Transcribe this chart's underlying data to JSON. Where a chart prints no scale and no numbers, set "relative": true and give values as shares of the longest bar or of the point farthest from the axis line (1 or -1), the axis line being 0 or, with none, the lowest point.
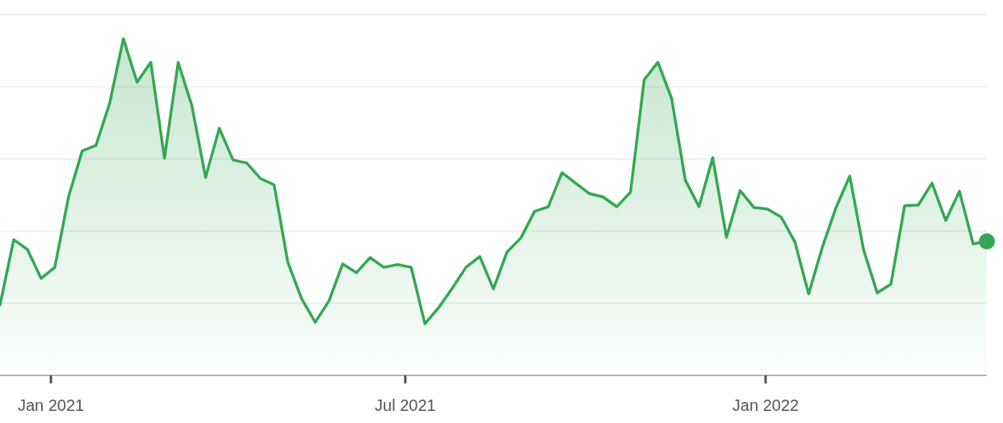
{
  "chart_data": {
    "type": "area",
    "relative": true,
    "grid": "y",
    "xlim": [
      "2020-12-06",
      "2022-04-24"
    ],
    "xticks": [
      {
        "value": "2021-01-01",
        "label": "Jan 2021"
      },
      {
        "value": "2021-07-01",
        "label": "Jul 2021"
      },
      {
        "value": "2022-01-01",
        "label": "Jan 2022"
      }
    ],
    "series": [
      {
        "color": "#34a853",
        "x": [
          "2020-12-06",
          "2020-12-13",
          "2020-12-20",
          "2020-12-27",
          "2021-01-03",
          "2021-01-10",
          "2021-01-17",
          "2021-01-24",
          "2021-01-31",
          "2021-02-07",
          "2021-02-14",
          "2021-02-21",
          "2021-02-28",
          "2021-03-07",
          "2021-03-14",
          "2021-03-21",
          "2021-03-28",
          "2021-04-04",
          "2021-04-11",
          "2021-04-18",
          "2021-04-25",
          "2021-05-02",
          "2021-05-09",
          "2021-05-16",
          "2021-05-23",
          "2021-05-30",
          "2021-06-06",
          "2021-06-13",
          "2021-06-20",
          "2021-06-27",
          "2021-07-04",
          "2021-07-11",
          "2021-07-18",
          "2021-07-25",
          "2021-08-01",
          "2021-08-08",
          "2021-08-15",
          "2021-08-22",
          "2021-08-29",
          "2021-09-05",
          "2021-09-12",
          "2021-09-19",
          "2021-09-26",
          "2021-10-03",
          "2021-10-10",
          "2021-10-17",
          "2021-10-24",
          "2021-10-31",
          "2021-11-07",
          "2021-11-14",
          "2021-11-21",
          "2021-11-28",
          "2021-12-05",
          "2021-12-12",
          "2021-12-19",
          "2021-12-26",
          "2022-01-02",
          "2022-01-09",
          "2022-01-16",
          "2022-01-23",
          "2022-01-30",
          "2022-02-06",
          "2022-02-13",
          "2022-02-20",
          "2022-02-27",
          "2022-03-06",
          "2022-03-13",
          "2022-03-20",
          "2022-03-27",
          "2022-04-03",
          "2022-04-10",
          "2022-04-17",
          "2022-04-24"
        ],
        "values": [
          0.209,
          0.403,
          0.374,
          0.288,
          0.321,
          0.53,
          0.667,
          0.683,
          0.808,
          1,
          0.871,
          0.93,
          0.645,
          0.93,
          0.801,
          0.588,
          0.734,
          0.64,
          0.631,
          0.585,
          0.566,
          0.336,
          0.228,
          0.158,
          0.221,
          0.331,
          0.305,
          0.35,
          0.321,
          0.329,
          0.321,
          0.153,
          0.201,
          0.259,
          0.321,
          0.353,
          0.257,
          0.367,
          0.408,
          0.487,
          0.501,
          0.602,
          0.571,
          0.54,
          0.53,
          0.501,
          0.544,
          0.878,
          0.93,
          0.823,
          0.58,
          0.501,
          0.647,
          0.41,
          0.549,
          0.499,
          0.494,
          0.47,
          0.396,
          0.242,
          0.381,
          0.499,
          0.592,
          0.374,
          0.245,
          0.271,
          0.504,
          0.506,
          0.571,
          0.46,
          0.547,
          0.391,
          0.398
        ]
      },
      {
        "type": "scatter",
        "color": "#34a853",
        "marker": "circle",
        "x": [
          "2022-04-24"
        ],
        "values": [
          0.398
        ]
      }
    ]
  }
}
